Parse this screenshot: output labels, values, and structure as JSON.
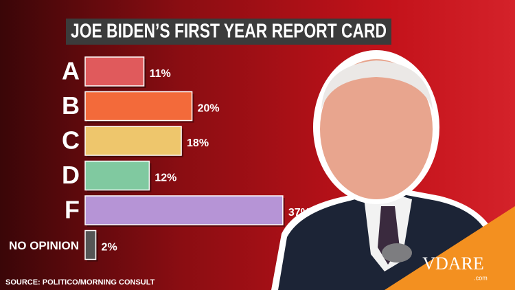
{
  "chart_data": {
    "type": "bar",
    "orientation": "horizontal",
    "title": "JOE BIDEN’S FIRST YEAR REPORT CARD",
    "categories": [
      "A",
      "B",
      "C",
      "D",
      "F",
      "NO OPINION"
    ],
    "values": [
      11,
      20,
      18,
      12,
      37,
      2
    ],
    "value_labels": [
      "11%",
      "20%",
      "18%",
      "12%",
      "37%",
      "2%"
    ],
    "colors": [
      "#e05a5c",
      "#f36a3a",
      "#eec66c",
      "#80c9a0",
      "#b694d6",
      "#555555"
    ],
    "source": "SOURCE: POLITICO/MORNING CONSULT"
  },
  "logo": {
    "text": "VDARE",
    "sub": ".com"
  }
}
